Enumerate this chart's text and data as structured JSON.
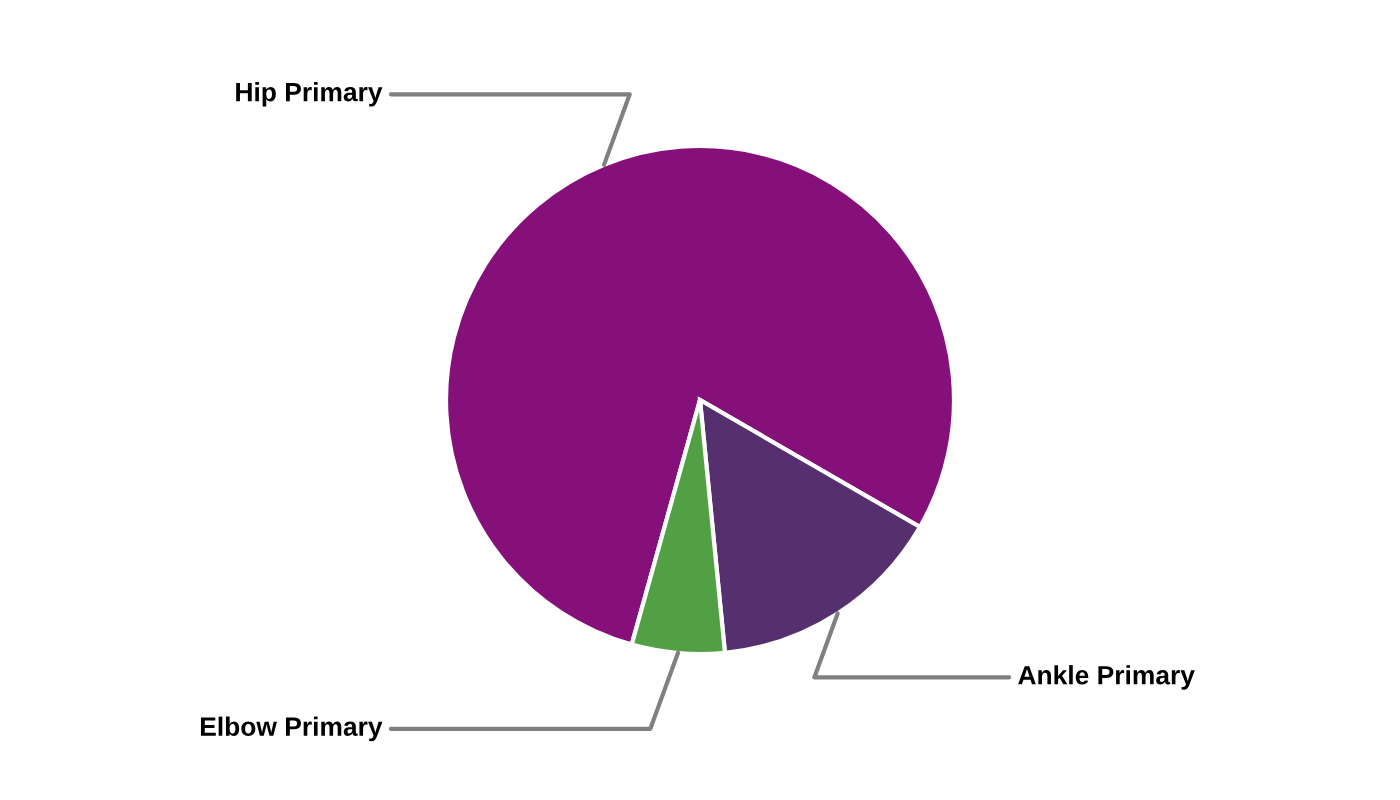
{
  "chart_data": {
    "type": "pie",
    "categories": [
      "Hip Primary",
      "Ankle Primary",
      "Elbow Primary"
    ],
    "values": [
      79,
      15.1,
      5.9
    ],
    "colors": [
      "#85107a",
      "#56306e",
      "#52a044"
    ]
  }
}
